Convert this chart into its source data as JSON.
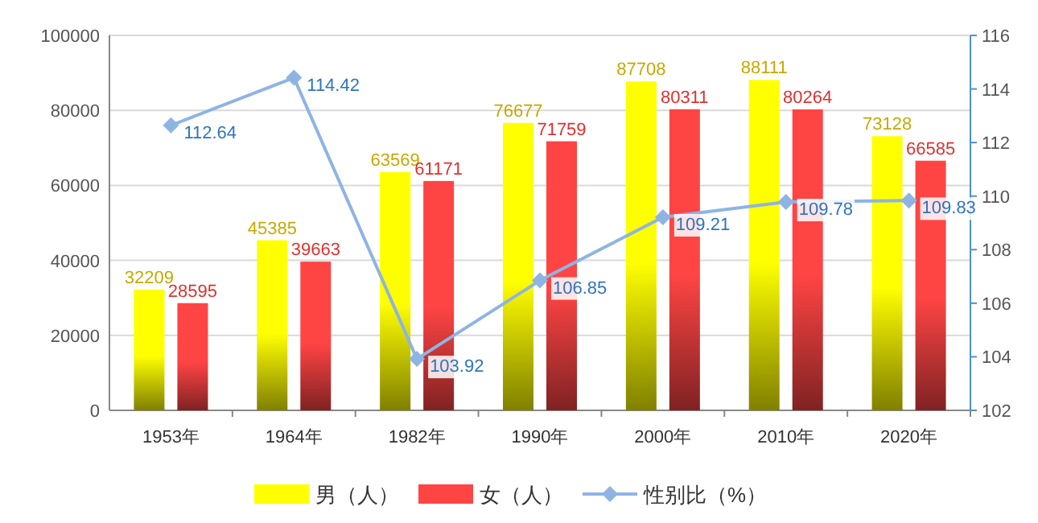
{
  "chart_data": {
    "type": "bar",
    "categories": [
      "1953年",
      "1964年",
      "1982年",
      "1990年",
      "2000年",
      "2010年",
      "2020年"
    ],
    "series": [
      {
        "name": "男（人）",
        "color": "#ffff00",
        "values": [
          32209,
          45385,
          63569,
          76677,
          87708,
          88111,
          73128
        ]
      },
      {
        "name": "女（人）",
        "color": "#ff4444",
        "values": [
          28595,
          39663,
          61171,
          71759,
          80311,
          80264,
          66585
        ]
      },
      {
        "name": "性别比（%）",
        "type": "line",
        "axis": "y2",
        "marker": "diamond",
        "color": "#8eb4e3",
        "values": [
          112.64,
          114.42,
          103.92,
          106.85,
          109.21,
          109.78,
          109.83
        ]
      }
    ],
    "ylim": [
      0,
      100000
    ],
    "yticks": [
      0,
      20000,
      40000,
      60000,
      80000,
      100000
    ],
    "y2lim": [
      102,
      116
    ],
    "y2ticks": [
      102,
      104,
      106,
      108,
      110,
      112,
      114,
      116
    ],
    "grid": "y",
    "legend": "bottom",
    "data_labels": true
  }
}
